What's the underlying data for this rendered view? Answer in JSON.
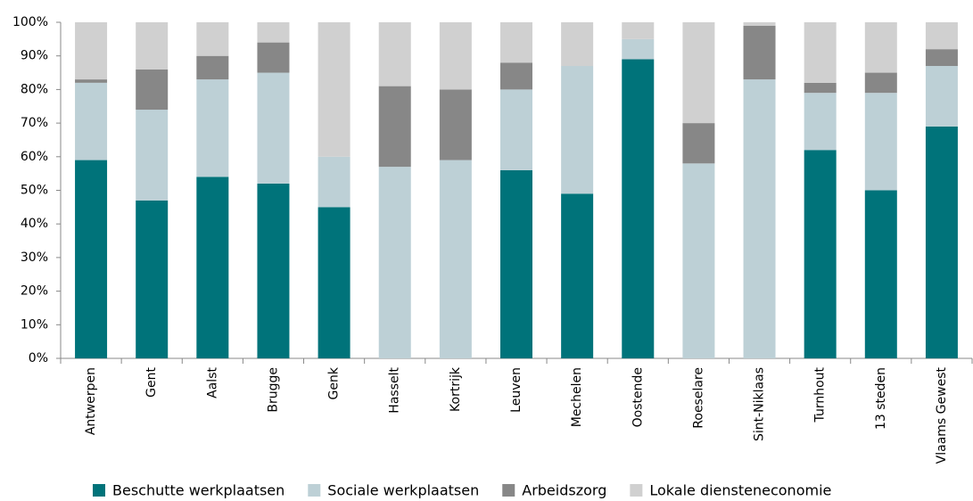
{
  "chart_data": {
    "type": "stacked_bar",
    "categories": [
      "Antwerpen",
      "Gent",
      "Aalst",
      "Brugge",
      "Genk",
      "Hasselt",
      "Kortrijk",
      "Leuven",
      "Mechelen",
      "Oostende",
      "Roeselare",
      "Sint-Niklaas",
      "Turnhout",
      "13 steden",
      "Vlaams Gewest"
    ],
    "series": [
      {
        "name": "Beschutte werkplaatsen",
        "color": "#00737a",
        "values": [
          59,
          47,
          54,
          52,
          45,
          0,
          0,
          56,
          49,
          89,
          0,
          0,
          62,
          50,
          69
        ]
      },
      {
        "name": "Sociale werkplaatsen",
        "color": "#bdd0d6",
        "values": [
          23,
          27,
          29,
          33,
          15,
          57,
          59,
          24,
          38,
          6,
          58,
          83,
          17,
          29,
          18
        ]
      },
      {
        "name": "Arbeidszorg",
        "color": "#878787",
        "values": [
          1,
          12,
          7,
          9,
          0,
          24,
          21,
          8,
          0,
          0,
          12,
          16,
          3,
          6,
          5
        ]
      },
      {
        "name": "Lokale diensteneconomie",
        "color": "#d0d0d0",
        "values": [
          17,
          14,
          10,
          6,
          40,
          19,
          20,
          12,
          13,
          5,
          30,
          1,
          18,
          15,
          8
        ]
      }
    ],
    "ylim": [
      0,
      100
    ],
    "yticks": [
      {
        "value": 0,
        "label": "0%"
      },
      {
        "value": 10,
        "label": "10%"
      },
      {
        "value": 20,
        "label": "20%"
      },
      {
        "value": 30,
        "label": "30%"
      },
      {
        "value": 40,
        "label": "40%"
      },
      {
        "value": 50,
        "label": "50%"
      },
      {
        "value": 60,
        "label": "60%"
      },
      {
        "value": 70,
        "label": "70%"
      },
      {
        "value": 80,
        "label": "80%"
      },
      {
        "value": 90,
        "label": "90%"
      },
      {
        "value": 100,
        "label": "100%"
      }
    ],
    "legend": "bottom"
  }
}
